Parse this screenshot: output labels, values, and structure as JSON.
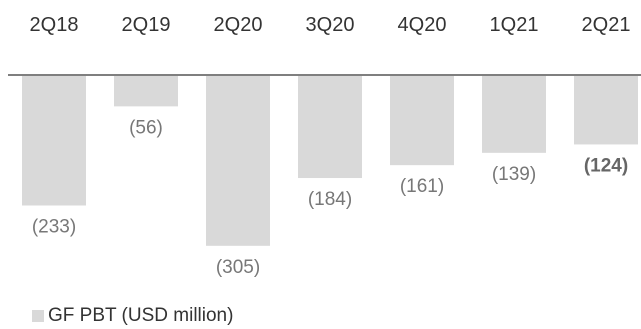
{
  "chart_data": {
    "type": "bar",
    "categories": [
      "2Q18",
      "2Q19",
      "2Q20",
      "3Q20",
      "4Q20",
      "1Q21",
      "2Q21"
    ],
    "series": [
      {
        "name": "GF PBT (USD million)",
        "values": [
          -233,
          -56,
          -305,
          -184,
          -161,
          -139,
          -124
        ],
        "value_labels": [
          "(233)",
          "(56)",
          "(305)",
          "(184)",
          "(161)",
          "(139)",
          "(124)"
        ],
        "highlight_index": 6,
        "color": "#d9d9d9"
      }
    ],
    "title": "",
    "xlabel": "",
    "ylabel": "",
    "ylim": [
      -340,
      0
    ],
    "grid": false,
    "legend_position": "bottom-left",
    "baseline_color": "#7f7f7f"
  }
}
